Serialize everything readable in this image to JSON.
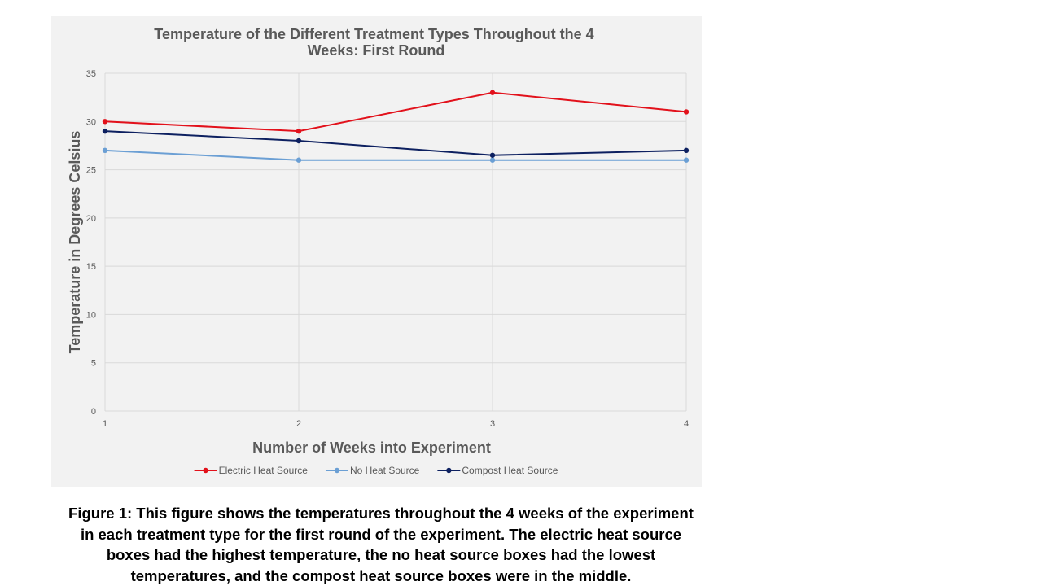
{
  "chart_data": {
    "type": "line",
    "title": "Temperature of the Different Treatment Types Throughout the 4 Weeks: First Round",
    "title_lines": [
      "Temperature of the Different Treatment Types Throughout the 4",
      "Weeks: First Round"
    ],
    "xlabel": "Number of Weeks into Experiment",
    "ylabel": "Temperature in Degrees Celsius",
    "x": [
      1,
      2,
      3,
      4
    ],
    "x_tick_labels": [
      "1",
      "2",
      "3",
      "4"
    ],
    "ylim": [
      0,
      35
    ],
    "y_tick_labels": [
      "0",
      "5",
      "10",
      "15",
      "20",
      "25",
      "30",
      "35"
    ],
    "grid": true,
    "legend_position": "bottom",
    "series": [
      {
        "name": "Electric Heat Source",
        "color": "#e2111b",
        "values": [
          30,
          29,
          33,
          31
        ]
      },
      {
        "name": "No Heat Source",
        "color": "#6b9fd4",
        "values": [
          27,
          26,
          26,
          26
        ]
      },
      {
        "name": "Compost Heat Source",
        "color": "#0d2060",
        "values": [
          29,
          28,
          26.5,
          27
        ]
      }
    ]
  },
  "caption": {
    "lines": [
      "Figure 1:  This figure shows the temperatures throughout the 4 weeks of the experiment",
      "in each treatment type for the first round of the experiment.  The electric heat source",
      "boxes had the highest temperature, the no heat source boxes had the lowest",
      "temperatures, and the compost heat source boxes were in the middle."
    ]
  }
}
